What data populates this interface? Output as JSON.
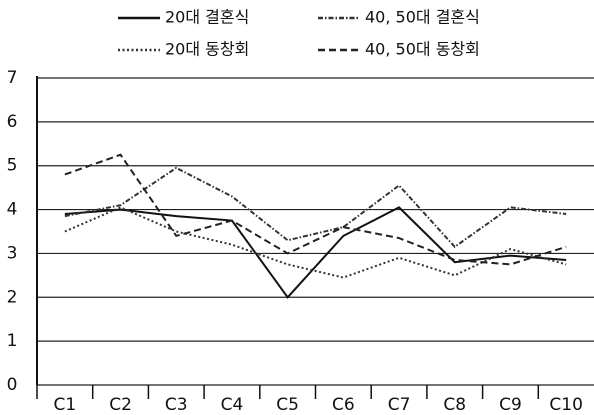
{
  "chart_data": {
    "type": "line",
    "categories": [
      "C1",
      "C2",
      "C3",
      "C4",
      "C5",
      "C6",
      "C7",
      "C8",
      "C9",
      "C10"
    ],
    "series": [
      {
        "name": "20대 결혼식",
        "color": "#111111",
        "dash": "solid",
        "values": [
          3.9,
          4.0,
          3.85,
          3.75,
          2.0,
          3.4,
          4.05,
          2.8,
          2.95,
          2.85
        ]
      },
      {
        "name": "40, 50대 결혼식",
        "color": "#333333",
        "dash": "dashdot",
        "values": [
          3.85,
          4.1,
          4.95,
          4.3,
          3.3,
          3.6,
          4.55,
          3.15,
          4.05,
          3.9
        ]
      },
      {
        "name": "20대 동창회",
        "color": "#333333",
        "dash": "dotted",
        "values": [
          3.5,
          4.05,
          3.5,
          3.2,
          2.75,
          2.45,
          2.9,
          2.5,
          3.1,
          2.75
        ]
      },
      {
        "name": "40, 50대 동창회",
        "color": "#222222",
        "dash": "dashed",
        "values": [
          4.8,
          5.25,
          3.4,
          3.75,
          3.0,
          3.6,
          3.35,
          2.85,
          2.75,
          3.15
        ]
      }
    ],
    "ylim": [
      0,
      7
    ],
    "yticks": [
      0,
      1,
      2,
      3,
      4,
      5,
      6,
      7
    ],
    "grid": true
  }
}
